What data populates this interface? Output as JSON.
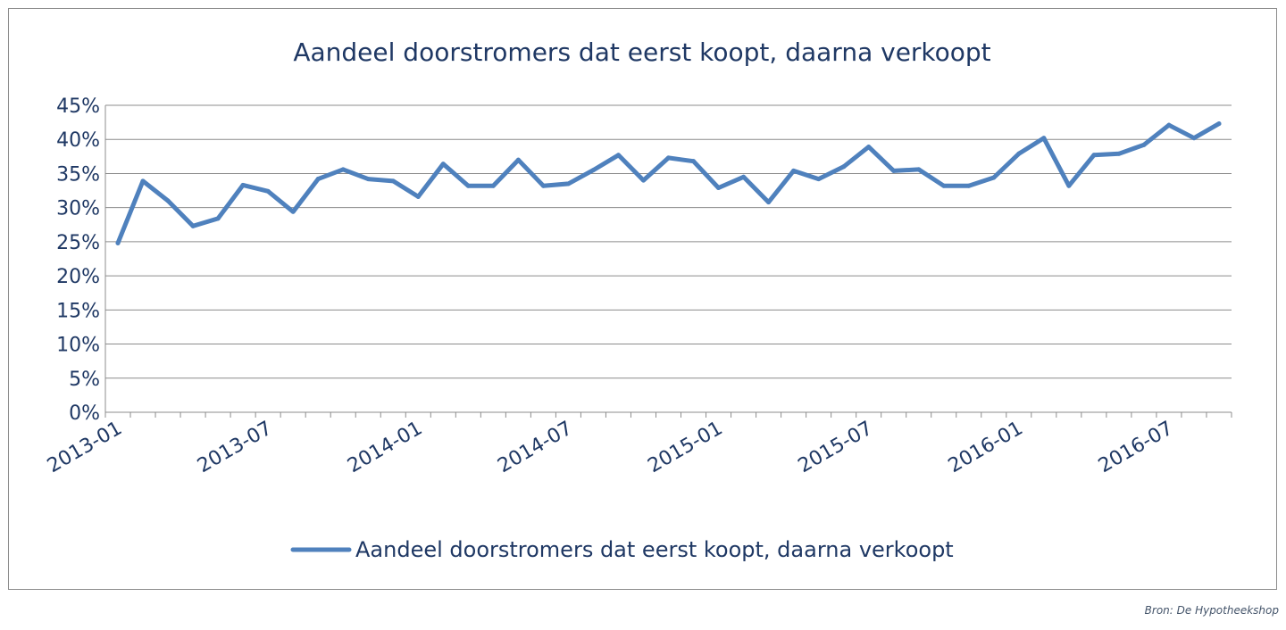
{
  "chart_data": {
    "type": "line",
    "title": "Aandeel doorstromers dat eerst koopt, daarna verkoopt",
    "xlabel": "",
    "ylabel": "",
    "y_ticks": [
      "0%",
      "5%",
      "10%",
      "15%",
      "20%",
      "25%",
      "30%",
      "35%",
      "40%",
      "45%"
    ],
    "ylim": [
      0,
      45
    ],
    "x_tick_labels": [
      "2013-01",
      "2013-07",
      "2014-01",
      "2014-07",
      "2015-01",
      "2015-07",
      "2016-01",
      "2016-07"
    ],
    "x": [
      "2013-01",
      "2013-02",
      "2013-03",
      "2013-04",
      "2013-05",
      "2013-06",
      "2013-07",
      "2013-08",
      "2013-09",
      "2013-10",
      "2013-11",
      "2013-12",
      "2014-01",
      "2014-02",
      "2014-03",
      "2014-04",
      "2014-05",
      "2014-06",
      "2014-07",
      "2014-08",
      "2014-09",
      "2014-10",
      "2014-11",
      "2014-12",
      "2015-01",
      "2015-02",
      "2015-03",
      "2015-04",
      "2015-05",
      "2015-06",
      "2015-07",
      "2015-08",
      "2015-09",
      "2015-10",
      "2015-11",
      "2015-12",
      "2016-01",
      "2016-02",
      "2016-03",
      "2016-04",
      "2016-05",
      "2016-06",
      "2016-07",
      "2016-08",
      "2016-09"
    ],
    "series": [
      {
        "name": "Aandeel doorstromers dat eerst koopt, daarna verkoopt",
        "color": "#4f81bd",
        "values": [
          24.8,
          33.9,
          31.0,
          27.3,
          28.4,
          33.3,
          32.4,
          29.4,
          34.2,
          35.6,
          34.2,
          33.9,
          31.6,
          36.4,
          33.2,
          33.2,
          37.0,
          33.2,
          33.5,
          35.5,
          37.7,
          34.0,
          37.3,
          36.8,
          32.9,
          34.5,
          30.8,
          35.4,
          34.2,
          36.0,
          38.9,
          35.4,
          35.6,
          33.2,
          33.2,
          34.4,
          37.9,
          40.2,
          33.2,
          37.7,
          37.9,
          39.2,
          42.1,
          40.2,
          42.3
        ]
      }
    ],
    "grid": true,
    "legend": "bottom"
  },
  "source": "Bron: De Hypotheekshop"
}
